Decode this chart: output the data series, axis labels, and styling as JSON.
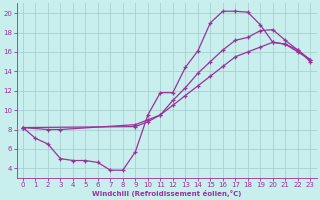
{
  "xlabel": "Windchill (Refroidissement éolien,°C)",
  "bg_color": "#c8eeed",
  "grid_color": "#a0cccc",
  "line_color": "#993399",
  "xlim": [
    -0.5,
    23.5
  ],
  "ylim": [
    3.0,
    21.0
  ],
  "yticks": [
    4,
    6,
    8,
    10,
    12,
    14,
    16,
    18,
    20
  ],
  "xticks": [
    0,
    1,
    2,
    3,
    4,
    5,
    6,
    7,
    8,
    9,
    10,
    11,
    12,
    13,
    14,
    15,
    16,
    17,
    18,
    19,
    20,
    21,
    22,
    23
  ],
  "line1_x": [
    0,
    1,
    2,
    3,
    4,
    5,
    6,
    7,
    8,
    9,
    10,
    11,
    12,
    13,
    14,
    15,
    16,
    17,
    18,
    19,
    20,
    21,
    22,
    23
  ],
  "line1_y": [
    8.2,
    7.1,
    6.5,
    5.0,
    4.8,
    4.8,
    4.6,
    3.8,
    3.8,
    5.7,
    9.5,
    11.8,
    11.8,
    14.4,
    16.1,
    19.0,
    20.2,
    20.2,
    20.1,
    18.8,
    17.0,
    16.8,
    16.2,
    15.0
  ],
  "line2_x": [
    0,
    2,
    3,
    9,
    10,
    11,
    12,
    13,
    14,
    15,
    16,
    17,
    18,
    19,
    20,
    21,
    22,
    23
  ],
  "line2_y": [
    8.2,
    8.0,
    8.0,
    8.5,
    9.0,
    9.5,
    11.0,
    12.3,
    13.8,
    15.0,
    16.2,
    17.2,
    17.5,
    18.2,
    18.3,
    17.2,
    16.2,
    15.2
  ],
  "line3_x": [
    0,
    9,
    10,
    11,
    12,
    13,
    14,
    15,
    16,
    17,
    18,
    19,
    20,
    21,
    22,
    23
  ],
  "line3_y": [
    8.2,
    8.3,
    8.8,
    9.5,
    10.5,
    11.5,
    12.5,
    13.5,
    14.5,
    15.5,
    16.0,
    16.5,
    17.0,
    16.8,
    16.0,
    15.2
  ]
}
